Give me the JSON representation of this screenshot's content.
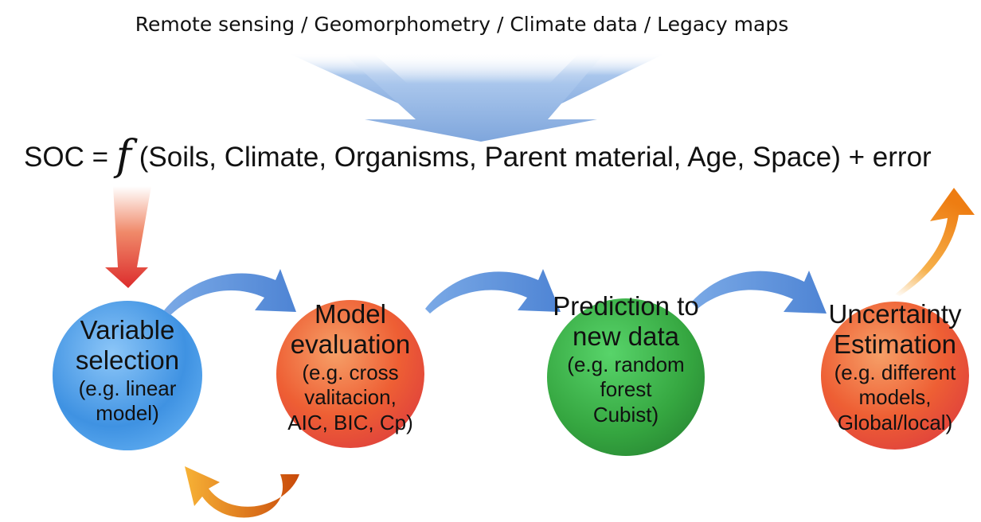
{
  "top_caption": "Remote sensing / Geomorphometry / Climate data / Legacy maps",
  "equation": {
    "left": "SOC =",
    "function_symbol": "f",
    "right": "(Soils, Climate, Organisms, Parent material, Age, Space) + error"
  },
  "steps": [
    {
      "title_line1": "Variable",
      "title_line2": "selection",
      "detail_line1": "(e.g. linear",
      "detail_line2": "model)",
      "detail_line3": "",
      "color": "#4d9de8"
    },
    {
      "title_line1": "Model",
      "title_line2": "evaluation",
      "detail_line1": "(e.g. cross",
      "detail_line2": "valitacion,",
      "detail_line3": "AIC, BIC, Cp)",
      "color": "#ee5a38"
    },
    {
      "title_line1": "Prediction to",
      "title_line2": "new data",
      "detail_line1": "(e.g. random",
      "detail_line2": "forest",
      "detail_line3": "Cubist)",
      "color": "#3ead46"
    },
    {
      "title_line1": "Uncertainty",
      "title_line2": "Estimation",
      "detail_line1": "(e.g. different",
      "detail_line2": "models,",
      "detail_line3": "Global/local)",
      "color": "#ee5a38"
    }
  ],
  "colors": {
    "input_arrow": "#8fb3e3",
    "flow_arrow": "#5b8fd8",
    "red_arrow": "#e03a2c",
    "orange_arrow": "#f08a1c"
  }
}
